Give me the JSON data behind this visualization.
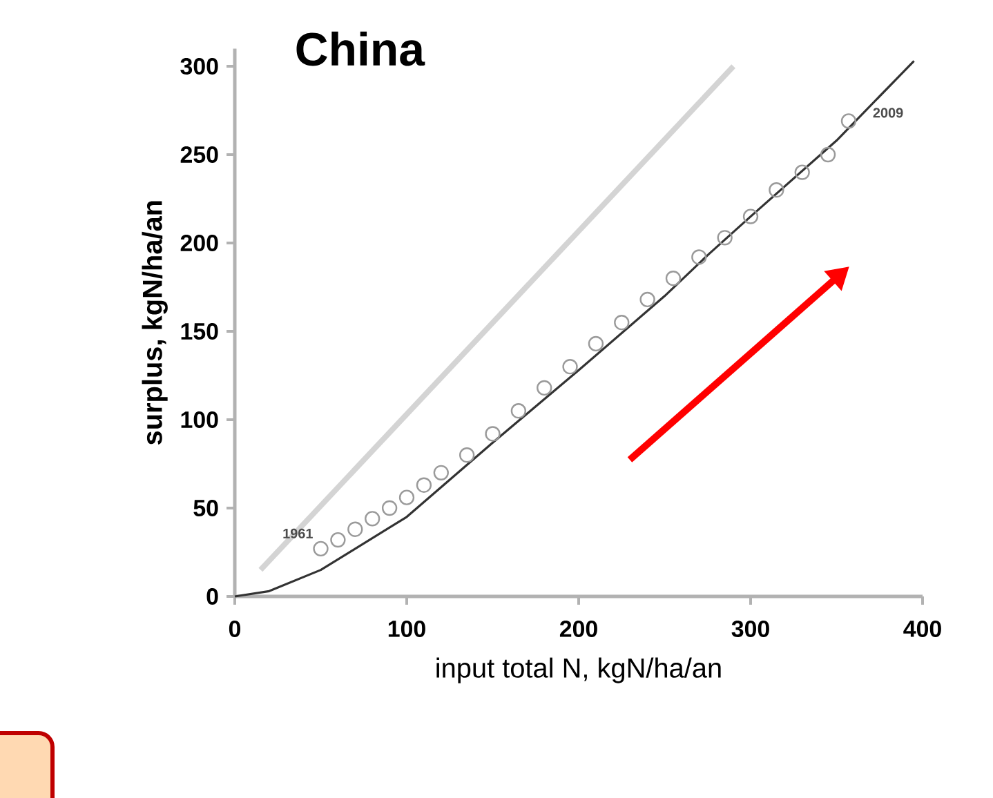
{
  "chart_data": {
    "type": "scatter",
    "title": "China",
    "xlabel": "input total N, kgN/ha/an",
    "ylabel": "surplus, kgN/ha/an",
    "xlim": [
      0,
      400
    ],
    "ylim": [
      0,
      310
    ],
    "xticks": [
      0,
      100,
      200,
      300,
      400
    ],
    "yticks": [
      0,
      50,
      100,
      150,
      200,
      250,
      300
    ],
    "grid": false,
    "series": [
      {
        "type": "line",
        "color": "#d4d4d4",
        "x": [
          15,
          290
        ],
        "values": [
          15,
          300
        ]
      },
      {
        "type": "line",
        "color": "#333333",
        "x": [
          0,
          20,
          50,
          100,
          150,
          200,
          250,
          276,
          300,
          350,
          395
        ],
        "values": [
          0,
          3,
          15,
          45,
          87,
          128,
          170,
          194,
          215,
          258,
          303
        ]
      },
      {
        "marker": "circle",
        "color": "#9a9a9a",
        "x": [
          50,
          60,
          70,
          80,
          90,
          100,
          110,
          120,
          135,
          150,
          165,
          180,
          195,
          210,
          225,
          240,
          255,
          270,
          285,
          300,
          315,
          330,
          345,
          357
        ],
        "values": [
          27,
          32,
          38,
          44,
          50,
          56,
          63,
          70,
          80,
          92,
          105,
          118,
          130,
          143,
          155,
          168,
          180,
          192,
          203,
          215,
          230,
          240,
          250,
          269
        ]
      }
    ],
    "annotations": [
      {
        "text": "1961",
        "x": 50,
        "y": 27
      },
      {
        "text": "2009",
        "x": 357,
        "y": 269
      }
    ]
  }
}
